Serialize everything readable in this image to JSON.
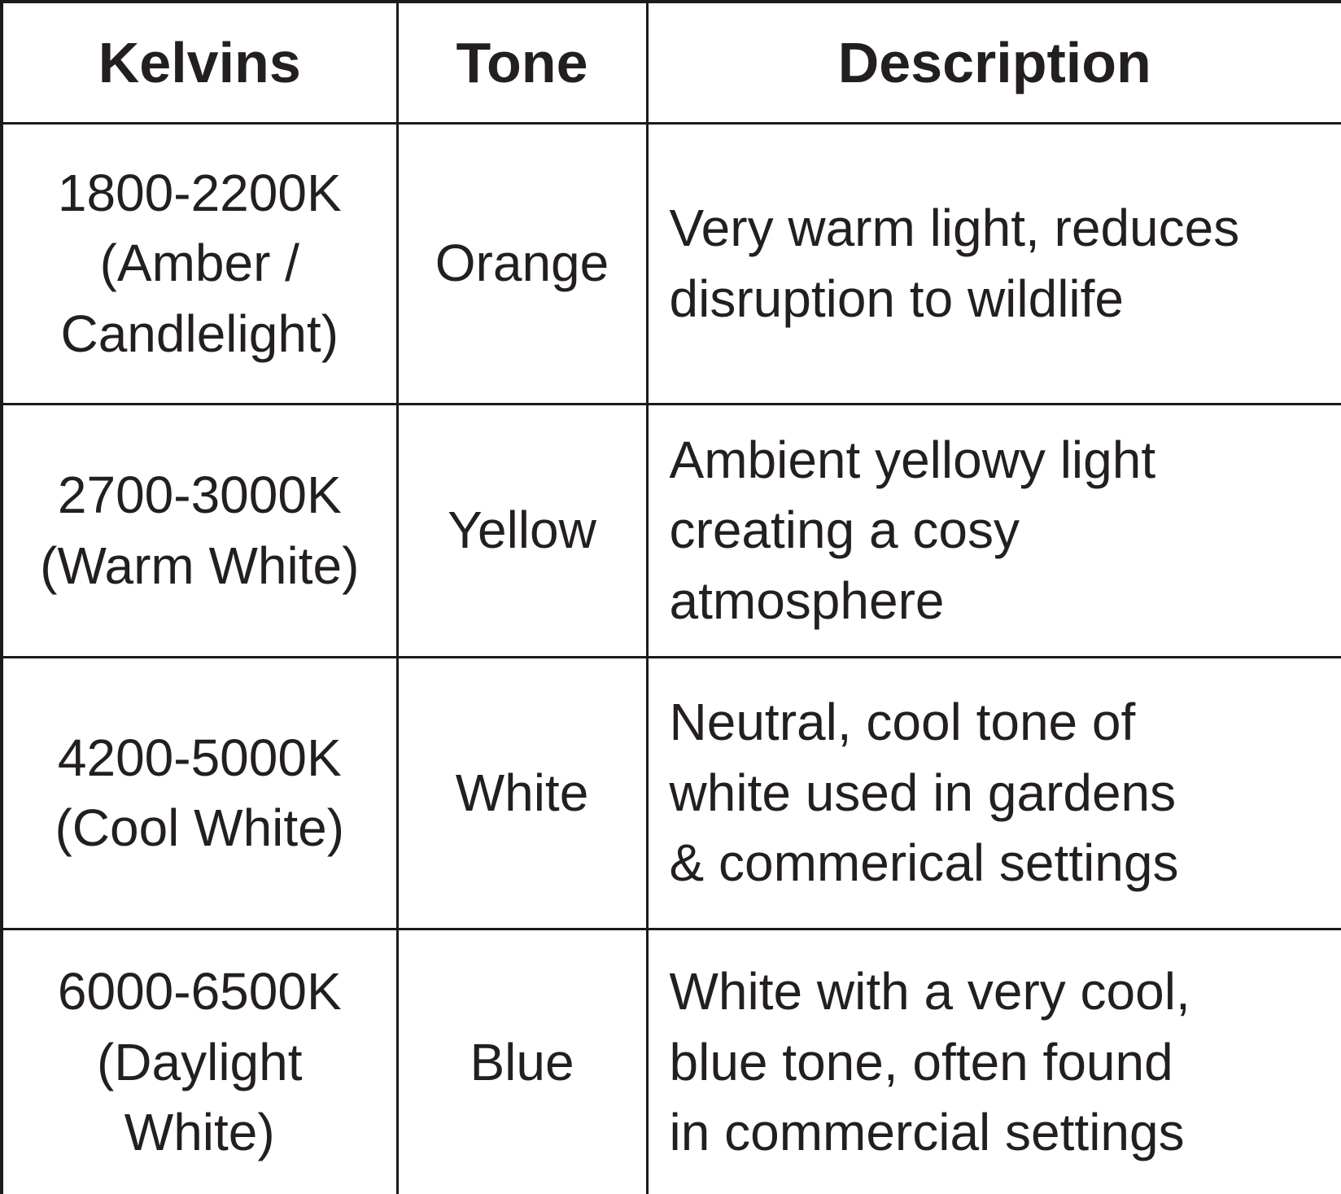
{
  "chart_data": {
    "type": "table",
    "columns": [
      "Kelvins",
      "Tone",
      "Description"
    ],
    "rows": [
      [
        "1800-2200K (Amber / Candlelight)",
        "Orange",
        "Very warm light, reduces disruption to wildlife"
      ],
      [
        "2700-3000K (Warm White)",
        "Yellow",
        "Ambient yellowy light creating a cosy atmosphere"
      ],
      [
        "4200-5000K (Cool White)",
        "White",
        "Neutral, cool tone of white used in gardens & commerical settings"
      ],
      [
        "6000-6500K (Daylight White)",
        "Blue",
        "White with a very cool, blue tone, often found in commercial settings"
      ]
    ]
  },
  "table": {
    "headers": [
      "Kelvins",
      "Tone",
      "Description"
    ],
    "rows": [
      {
        "kelvins": "1800-2200K\n(Amber /\nCandlelight)",
        "tone": "Orange",
        "description": "Very warm light, reduces\ndisruption to wildlife"
      },
      {
        "kelvins": "2700-3000K\n(Warm White)",
        "tone": "Yellow",
        "description": "Ambient yellowy light\ncreating a cosy\natmosphere"
      },
      {
        "kelvins": "4200-5000K\n(Cool White)",
        "tone": "White",
        "description": "Neutral, cool tone of\nwhite used in gardens\n& commerical settings"
      },
      {
        "kelvins": "6000-6500K\n(Daylight\nWhite)",
        "tone": "Blue",
        "description": "White with a very cool,\nblue tone, often found\nin commercial settings"
      }
    ],
    "colors": {
      "text": "#231f20",
      "border": "#1d1a1b",
      "background": "#ffffff"
    }
  }
}
